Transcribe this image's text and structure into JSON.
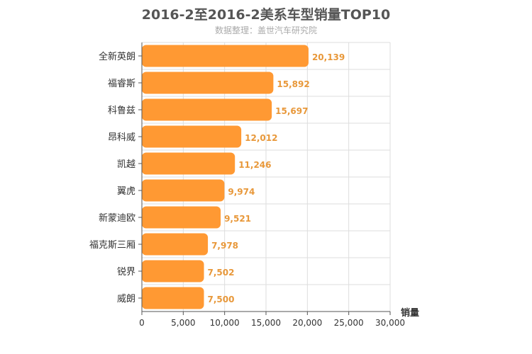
{
  "title": "2016-2至2016-2美系车型销量TOP10",
  "subtitle": "数据整理：盖世汽车研究院",
  "colors": {
    "bar": "#ff9933",
    "label": "#e8983a",
    "grid": "#dddddd",
    "axis": "#555555"
  },
  "chart_data": {
    "type": "bar",
    "orientation": "horizontal",
    "title": "2016-2至2016-2美系车型销量TOP10",
    "subtitle": "数据整理：盖世汽车研究院",
    "xlabel": "销量",
    "ylabel": "",
    "categories": [
      "全新英朗",
      "福睿斯",
      "科鲁兹",
      "昂科威",
      "凯越",
      "翼虎",
      "新蒙迪欧",
      "福克斯三厢",
      "锐界",
      "威朗"
    ],
    "values": [
      20139,
      15892,
      15697,
      12012,
      11246,
      9974,
      9521,
      7978,
      7502,
      7500
    ],
    "value_labels": [
      "20,139",
      "15,892",
      "15,697",
      "12,012",
      "11,246",
      "9,974",
      "9,521",
      "7,978",
      "7,502",
      "7,500"
    ],
    "xlim": [
      0,
      30000
    ],
    "ticks": [
      0,
      5000,
      10000,
      15000,
      20000,
      25000,
      30000
    ],
    "tick_labels": [
      "0",
      "5,000",
      "10,000",
      "15,000",
      "20,000",
      "25,000",
      "30,000"
    ],
    "grid": true
  }
}
